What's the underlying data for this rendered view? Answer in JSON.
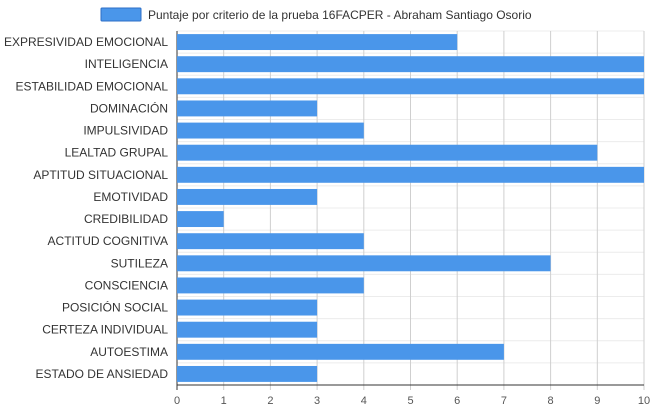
{
  "chart_data": {
    "type": "bar",
    "orientation": "horizontal",
    "title": "",
    "legend": {
      "position": "top-center"
    },
    "categories": [
      "EXPRESIVIDAD EMOCIONAL",
      "INTELIGENCIA",
      "ESTABILIDAD EMOCIONAL",
      "DOMINACIÓN",
      "IMPULSIVIDAD",
      "LEALTAD GRUPAL",
      "APTITUD SITUACIONAL",
      "EMOTIVIDAD",
      "CREDIBILIDAD",
      "ACTITUD COGNITIVA",
      "SUTILEZA",
      "CONSCIENCIA",
      "POSICIÓN SOCIAL",
      "CERTEZA INDIVIDUAL",
      "AUTOESTIMA",
      "ESTADO DE ANSIEDAD"
    ],
    "series": [
      {
        "name": "Puntaje por criterio de la prueba 16FACPER - Abraham Santiago Osorio",
        "color": "#4a96ea",
        "values": [
          6,
          10,
          10,
          3,
          4,
          9,
          10,
          3,
          1,
          4,
          8,
          4,
          3,
          3,
          7,
          3
        ]
      }
    ],
    "xlim": [
      0,
      10
    ],
    "xticks": [
      0,
      1,
      2,
      3,
      4,
      5,
      6,
      7,
      8,
      9,
      10
    ],
    "grid": true
  }
}
